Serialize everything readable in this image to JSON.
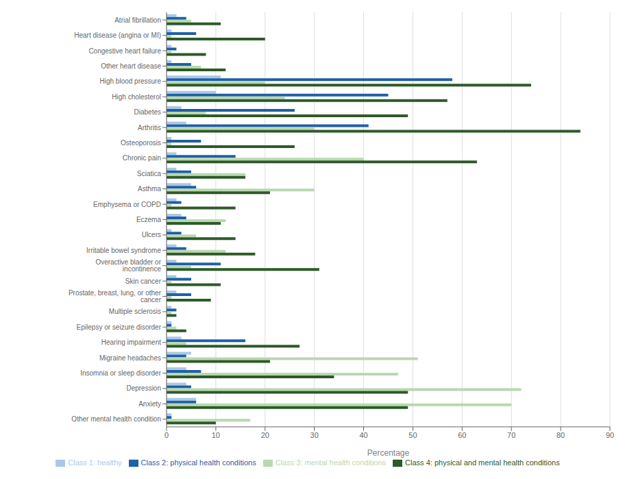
{
  "chart_data": {
    "type": "bar",
    "orientation": "horizontal",
    "categories": [
      "Atrial fibrillation",
      "Heart disease (angina or MI)",
      "Congestive heart failure",
      "Other heart disease",
      "High blood pressure",
      "High cholesterol",
      "Diabetes",
      "Arthritis",
      "Osteoporosis",
      "Chronic pain",
      "Sciatica",
      "Asthma",
      "Emphysema or COPD",
      "Eczema",
      "Ulcers",
      "Irritable bowel syndrome",
      "Overactive bladder or incontinence",
      "Skin cancer",
      "Prostate, breast, lung, or other cancer",
      "Multiple sclerosis",
      "Epilepsy or seizure disorder",
      "Hearing impairment",
      "Migraine headaches",
      "Insomnia or sleep disorder",
      "Depression",
      "Anxiety",
      "Other mental health condition"
    ],
    "series": [
      {
        "name": "Class 1: healthy",
        "color": "#a8c8e8",
        "values": [
          2,
          1,
          1,
          1,
          11,
          10,
          3,
          4,
          1,
          2,
          2,
          5,
          2,
          3,
          1,
          2,
          2,
          2,
          2,
          1,
          1,
          3,
          5,
          4,
          4,
          6,
          1
        ]
      },
      {
        "name": "Class 2: physical health conditions",
        "color": "#1f5fa6",
        "values": [
          4,
          6,
          2,
          5,
          58,
          45,
          26,
          41,
          7,
          14,
          5,
          6,
          3,
          4,
          3,
          4,
          11,
          5,
          5,
          2,
          1,
          16,
          4,
          7,
          5,
          6,
          1
        ]
      },
      {
        "name": "Class 3: mental health conditions",
        "color": "#b8d8b0",
        "values": [
          5,
          1,
          1,
          7,
          20,
          24,
          8,
          30,
          1,
          40,
          16,
          30,
          1,
          12,
          6,
          12,
          5,
          1,
          1,
          1,
          2,
          4,
          51,
          47,
          72,
          70,
          17
        ]
      },
      {
        "name": "Class 4: physical and mental health conditions",
        "color": "#2d5a27",
        "values": [
          11,
          20,
          8,
          12,
          74,
          57,
          49,
          84,
          26,
          63,
          16,
          21,
          14,
          11,
          14,
          18,
          31,
          11,
          9,
          2,
          4,
          27,
          21,
          34,
          49,
          49,
          10
        ]
      }
    ],
    "xlabel": "Percentage",
    "xlim": [
      0,
      90
    ],
    "xticks": [
      0,
      10,
      20,
      30,
      40,
      50,
      60,
      70,
      80,
      90
    ],
    "grid": true,
    "legend": "bottom"
  }
}
